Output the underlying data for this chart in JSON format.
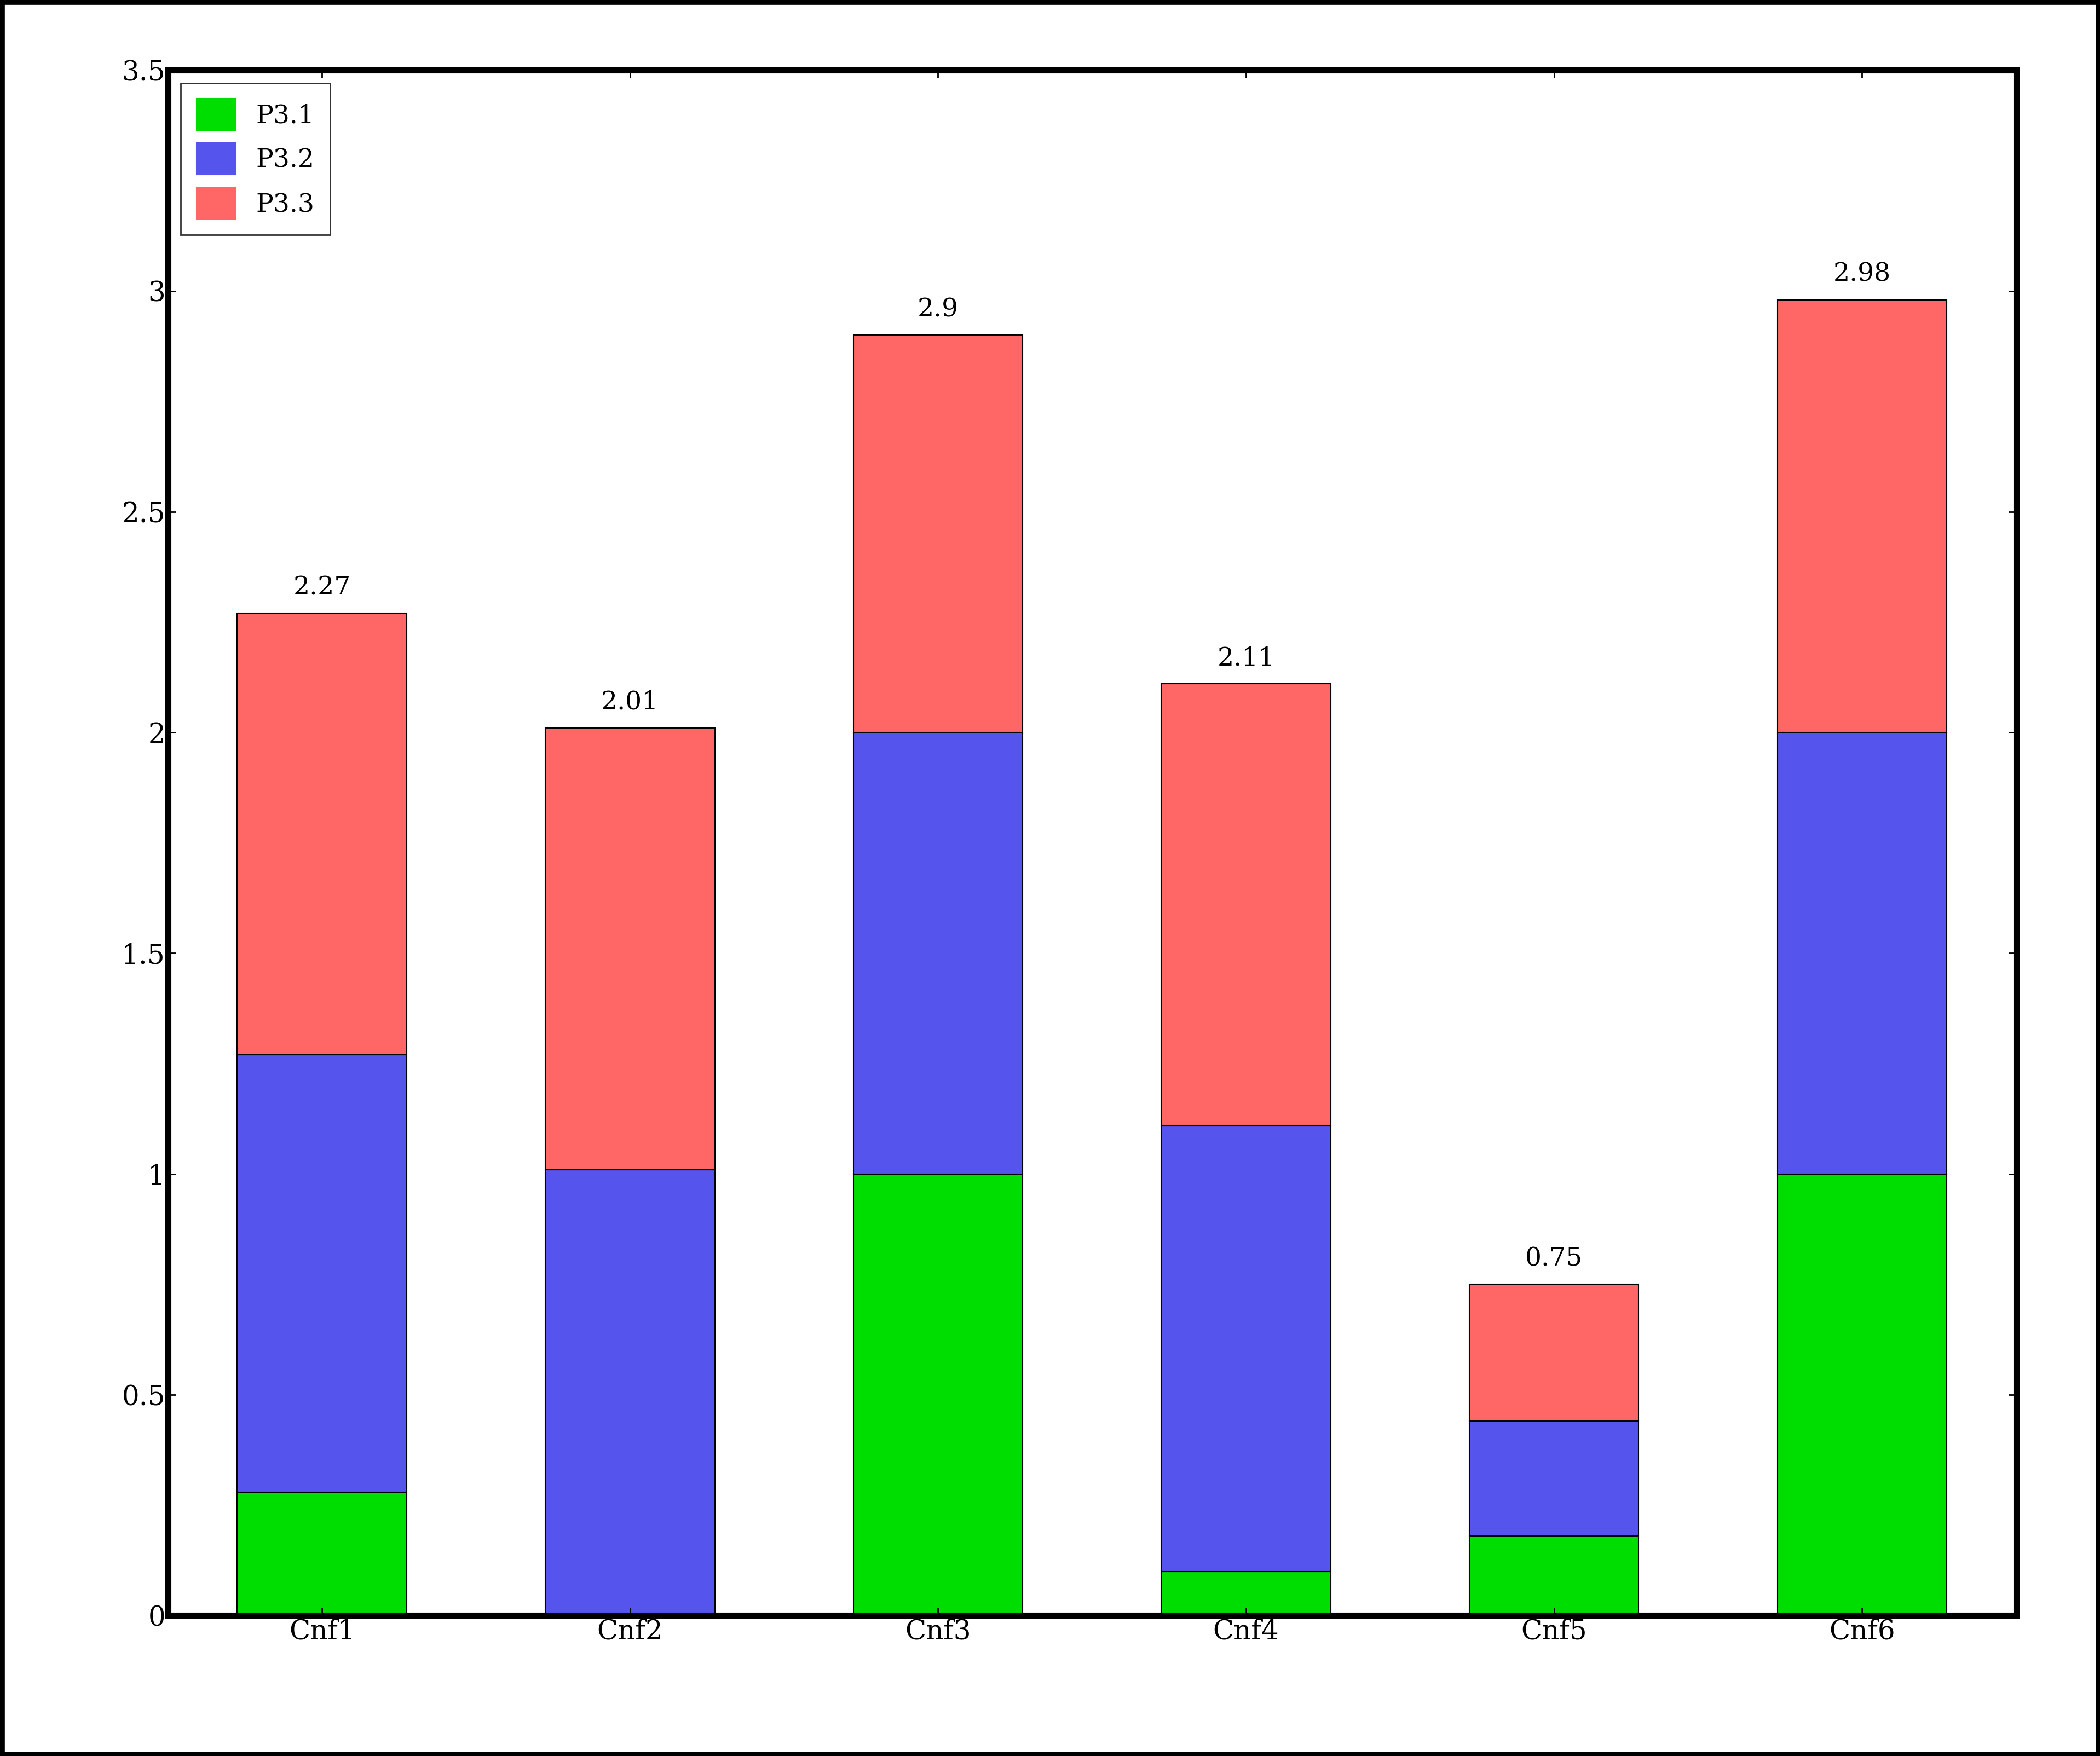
{
  "categories": [
    "Cnf1",
    "Cnf2",
    "Cnf3",
    "Cnf4",
    "Cnf5",
    "Cnf6"
  ],
  "p31": [
    0.28,
    0.0,
    1.0,
    0.1,
    0.18,
    1.0
  ],
  "p32": [
    0.99,
    1.01,
    1.0,
    1.01,
    0.26,
    1.0
  ],
  "p33": [
    1.0,
    1.0,
    0.9,
    1.0,
    0.31,
    0.98
  ],
  "totals": [
    2.27,
    2.01,
    2.9,
    2.11,
    0.75,
    2.98
  ],
  "color_p31": "#00dd00",
  "color_p32": "#5555ee",
  "color_p33": "#ff6666",
  "ylim": [
    0,
    3.5
  ],
  "yticks": [
    0,
    0.5,
    1.0,
    1.5,
    2.0,
    2.5,
    3.0,
    3.5
  ],
  "bar_width": 0.55,
  "legend_labels": [
    "P3.1",
    "P3.2",
    "P3.3"
  ],
  "tick_fontsize": 36,
  "annotation_fontsize": 34,
  "legend_fontsize": 34,
  "background_color": "#ffffff",
  "border_color": "#000000",
  "border_linewidth": 8,
  "outer_border_linewidth": 12
}
